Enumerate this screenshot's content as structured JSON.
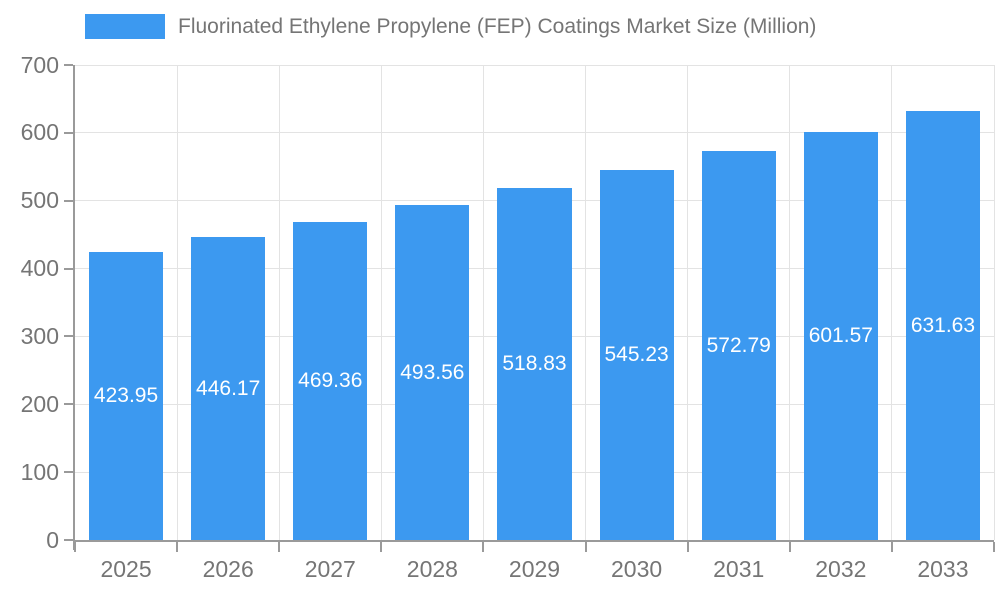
{
  "legend": {
    "position": "top-left",
    "items": [
      {
        "label": "Fluorinated Ethylene Propylene (FEP) Coatings Market Size (Million)",
        "color": "#3c99f0"
      }
    ]
  },
  "chart_data": {
    "type": "bar",
    "title": "Fluorinated Ethylene Propylene (FEP) Coatings Market Size (Million)",
    "xlabel": "",
    "ylabel": "",
    "categories": [
      "2025",
      "2026",
      "2027",
      "2028",
      "2029",
      "2030",
      "2031",
      "2032",
      "2033"
    ],
    "values": [
      423.95,
      446.17,
      469.36,
      493.56,
      518.83,
      545.23,
      572.79,
      601.57,
      631.63
    ],
    "value_labels": [
      "423.95",
      "446.17",
      "469.36",
      "493.56",
      "518.83",
      "545.23",
      "572.79",
      "601.57",
      "631.63"
    ],
    "ylim": [
      0,
      700
    ],
    "yticks": [
      0,
      100,
      200,
      300,
      400,
      500,
      600,
      700
    ],
    "grid": true,
    "legend_position": "top-left",
    "bar_color": "#3c99f0",
    "value_label_color": "#ffffff",
    "axis_color": "#9a9a9a",
    "grid_color": "#e3e3e3",
    "text_color": "#757575",
    "background": "#ffffff"
  }
}
